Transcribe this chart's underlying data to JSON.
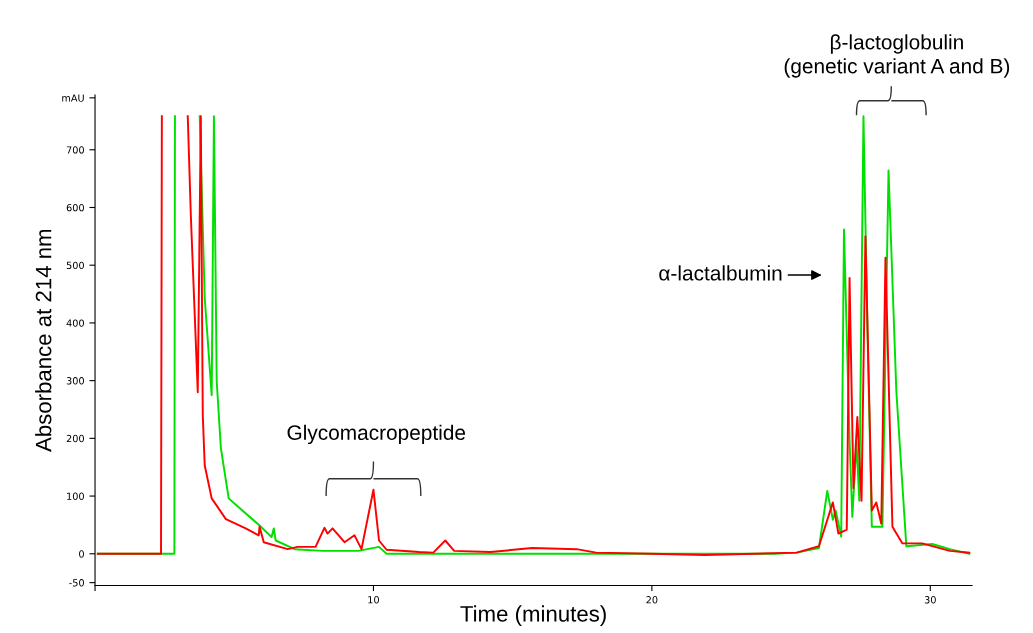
{
  "chart_data": {
    "type": "line",
    "xlabel": "Time (minutes)",
    "ylabel": "Absorbance at 214 nm",
    "xlim": [
      0,
      31.5
    ],
    "ylim": [
      -55,
      795
    ],
    "xticks": [
      {
        "value": 0,
        "label": null
      },
      10,
      20,
      30
    ],
    "yticks": [
      -50,
      0,
      100,
      200,
      300,
      400,
      500,
      600,
      700,
      {
        "value": 790,
        "label": "mAU"
      }
    ],
    "grid": false,
    "legend": false,
    "marker": "none",
    "line_style": "solid",
    "series": [
      {
        "color": "#00e000",
        "x": [
          0.1,
          2.85,
          2.87,
          3.7,
          3.76,
          3.94,
          4.19,
          4.27,
          4.37,
          4.52,
          4.8,
          5.2,
          5.91,
          6.34,
          6.42,
          6.49,
          7.17,
          8.17,
          9.46,
          10.2,
          10.47,
          14.2,
          24.4,
          25.2,
          26.0,
          26.3,
          26.5,
          26.6,
          26.8,
          26.9,
          27.1,
          27.2,
          27.35,
          27.45,
          27.6,
          27.74,
          27.9,
          28.28,
          28.5,
          28.78,
          29.14,
          30.07,
          30.7,
          31.4
        ],
        "values": [
          0,
          0,
          758,
          null,
          758,
          443,
          275,
          758,
          299,
          183,
          96,
          79,
          49,
          29,
          44,
          23,
          8,
          5,
          5,
          12,
          0,
          0,
          0,
          2,
          10,
          109,
          59,
          75,
          30,
          562,
          198,
          64,
          193,
          92,
          758,
          394,
          47,
          47,
          664,
          282,
          13,
          17,
          8,
          0
        ]
      },
      {
        "color": "#ff0000",
        "x": [
          0.1,
          2.37,
          2.4,
          3.0,
          3.33,
          3.44,
          3.69,
          3.8,
          3.84,
          3.87,
          3.94,
          4.19,
          4.7,
          5.41,
          5.88,
          5.91,
          6.06,
          6.92,
          7.28,
          7.92,
          8.24,
          8.35,
          8.53,
          8.96,
          9.32,
          9.57,
          10.0,
          10.2,
          10.47,
          11.65,
          12.15,
          12.58,
          12.9,
          14.2,
          15.7,
          17.3,
          18.0,
          20.0,
          21.9,
          25.2,
          26.0,
          26.5,
          26.7,
          27.0,
          27.1,
          27.24,
          27.38,
          27.53,
          27.67,
          27.9,
          28.06,
          28.24,
          28.39,
          28.64,
          29.0,
          29.71,
          30.7,
          31.4
        ],
        "values": [
          0,
          0,
          758,
          null,
          758,
          587,
          280,
          758,
          443,
          240,
          153,
          96,
          60,
          44,
          32,
          47,
          20,
          8,
          12,
          12,
          45,
          35,
          44,
          20,
          32,
          8,
          111,
          23,
          7,
          3,
          2,
          23,
          5,
          3,
          10,
          8,
          2,
          0,
          -2,
          2,
          13,
          89,
          35,
          42,
          478,
          114,
          237,
          92,
          550,
          75,
          89,
          52,
          513,
          47,
          18,
          18,
          5,
          2
        ]
      }
    ],
    "annotations": [
      "Glycomacropeptide",
      "α-lactalbumin",
      "β-lactoglobulin\n(genetic variant A and B)"
    ]
  }
}
